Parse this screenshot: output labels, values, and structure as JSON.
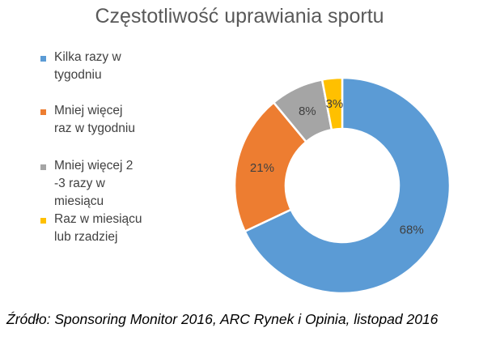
{
  "chart_data": {
    "type": "pie",
    "donut": true,
    "title": "Częstotliwość uprawiania sportu",
    "legend_position": "left",
    "categories": [
      "Kilka razy w tygodniu",
      "Mniej więcej raz w tygodniu",
      "Mniej więcej 2 -3 razy w miesiącu",
      "Raz w miesiącu lub rzadziej"
    ],
    "legend_lines": [
      [
        "Kilka razy w",
        "tygodniu"
      ],
      [
        "Mniej więcej",
        "raz w tygodniu"
      ],
      [
        "Mniej więcej 2",
        "-3 razy w",
        "miesiącu"
      ],
      [
        "Raz w miesiącu",
        "lub rzadziej"
      ]
    ],
    "values": [
      68,
      21,
      8,
      3
    ],
    "data_labels": [
      "68%",
      "21%",
      "8%",
      "3%"
    ],
    "colors": [
      "#5B9BD5",
      "#ED7D31",
      "#A5A5A5",
      "#FFC000"
    ]
  },
  "source": "Źródło: Sponsoring Monitor 2016, ARC Rynek i Opinia, listopad 2016"
}
